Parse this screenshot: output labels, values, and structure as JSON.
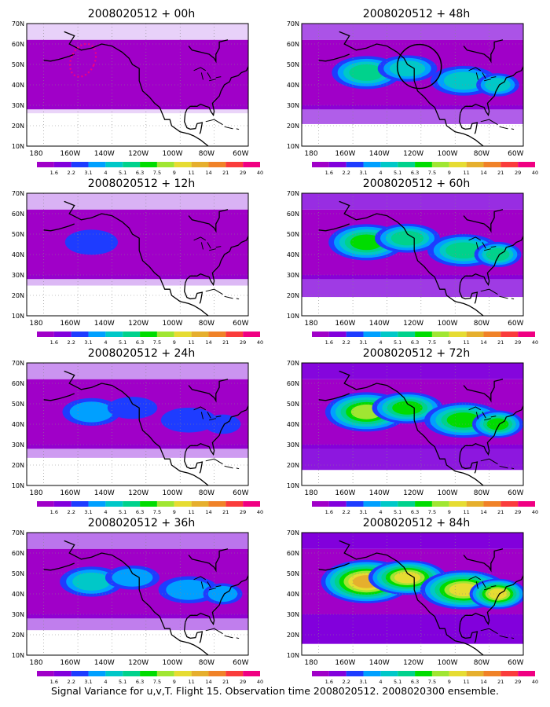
{
  "colorbar": {
    "labels": [
      "1.6",
      "2.2",
      "3.1",
      "4",
      "5.1",
      "6.3",
      "7.5",
      "9",
      "11",
      "14",
      "21",
      "29",
      "40"
    ],
    "colors": [
      "#a000c8",
      "#8200dc",
      "#1e3cff",
      "#00a0ff",
      "#00c8c8",
      "#00d28c",
      "#00dc00",
      "#a0e632",
      "#e6dc32",
      "#e6af2d",
      "#f08228",
      "#fa3c3c",
      "#f00082"
    ]
  },
  "axes": {
    "lat_ticks": [
      "70N",
      "60N",
      "50N",
      "40N",
      "30N",
      "20N",
      "10N"
    ],
    "lon_ticks": [
      "180",
      "160W",
      "140W",
      "120W",
      "100W",
      "80W",
      "60W"
    ]
  },
  "panels": [
    {
      "title": "2008020512 + 00h",
      "lead_hours": 0,
      "intensity": 0.12,
      "marker": "ellipse"
    },
    {
      "title": "2008020512 + 48h",
      "lead_hours": 48,
      "intensity": 0.45,
      "marker": "circle"
    },
    {
      "title": "2008020512 + 12h",
      "lead_hours": 12,
      "intensity": 0.2,
      "marker": "none"
    },
    {
      "title": "2008020512 + 60h",
      "lead_hours": 60,
      "intensity": 0.55,
      "marker": "none"
    },
    {
      "title": "2008020512 + 24h",
      "lead_hours": 24,
      "intensity": 0.28,
      "marker": "none"
    },
    {
      "title": "2008020512 + 72h",
      "lead_hours": 72,
      "intensity": 0.65,
      "marker": "none"
    },
    {
      "title": "2008020512 + 36h",
      "lead_hours": 36,
      "intensity": 0.36,
      "marker": "none"
    },
    {
      "title": "2008020512 + 84h",
      "lead_hours": 84,
      "intensity": 0.78,
      "marker": "none"
    }
  ],
  "caption": "Signal Variance for u,v,T. Flight 15. Observation time 2008020512. 2008020300 ensemble."
}
